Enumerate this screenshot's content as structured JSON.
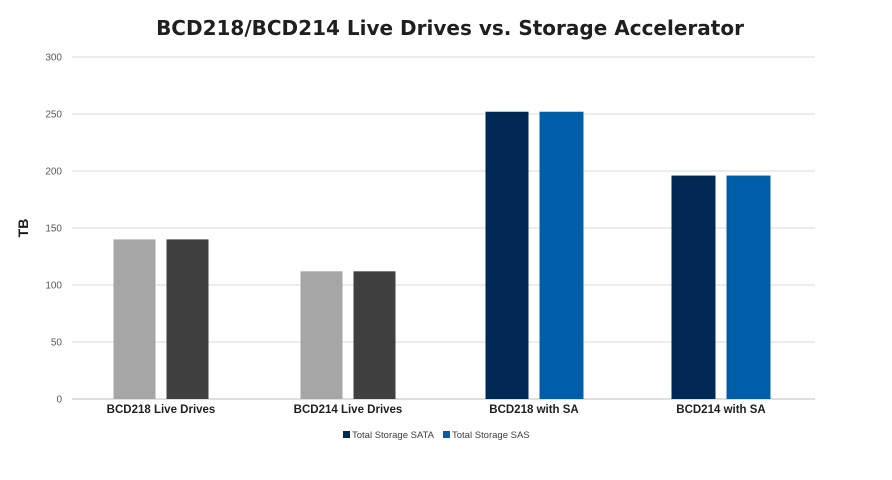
{
  "chart_data": {
    "type": "bar",
    "title": "BCD218/BCD214 Live Drives vs. Storage Accelerator",
    "ylabel": "TB",
    "xlabel": "",
    "ylim": [
      0,
      300
    ],
    "yticks": [
      0,
      50,
      100,
      150,
      200,
      250,
      300
    ],
    "categories": [
      "BCD218 Live Drives",
      "BCD214 Live Drives",
      "BCD218 with SA",
      "BCD214 with SA"
    ],
    "series": [
      {
        "name": "Total Storage SATA",
        "values": [
          140,
          112,
          252,
          196
        ],
        "colors": [
          "#a6a6a6",
          "#a6a6a6",
          "#002855",
          "#002855"
        ]
      },
      {
        "name": "Total Storage SAS",
        "values": [
          140,
          112,
          252,
          196
        ],
        "colors": [
          "#404040",
          "#404040",
          "#005ea8",
          "#005ea8"
        ]
      }
    ],
    "legend": {
      "position": "bottom",
      "entries": [
        {
          "label": "Total Storage SATA",
          "color": "#002855"
        },
        {
          "label": "Total Storage SAS",
          "color": "#005ea8"
        }
      ]
    },
    "grid": true
  }
}
